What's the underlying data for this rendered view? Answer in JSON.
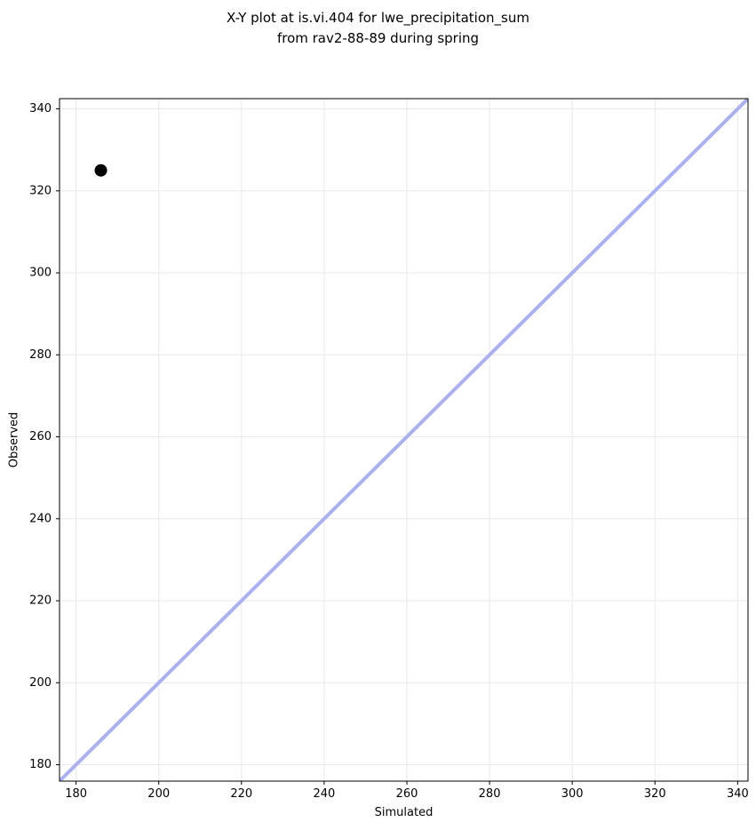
{
  "figure": {
    "title": "X-Y plot at is.vi.404 for lwe_precipitation_sum\nfrom rav2-88-89 during spring"
  },
  "chart_data": {
    "type": "scatter",
    "title": "X-Y plot at is.vi.404 for lwe_precipitation_sum\nfrom rav2-88-89 during spring",
    "xlabel": "Simulated",
    "ylabel": "Observed",
    "points": [
      {
        "x": 186,
        "y": 325
      }
    ],
    "identity_line": {
      "description": "1:1 reference line y = x drawn corner to corner",
      "x": [
        176,
        342.5
      ],
      "y": [
        176,
        342.5
      ]
    },
    "xlim": [
      176,
      342.5
    ],
    "ylim": [
      176,
      342.5
    ],
    "xticks": [
      180,
      200,
      220,
      240,
      260,
      280,
      300,
      320,
      340
    ],
    "yticks": [
      180,
      200,
      220,
      240,
      260,
      280,
      300,
      320,
      340
    ],
    "grid": true,
    "legend": null,
    "colors": {
      "point": "#000000",
      "identity_line": "#aab0f2",
      "grid": "#e9e9e9",
      "spine": "#000000",
      "text": "#000000",
      "background": "#ffffff"
    }
  }
}
